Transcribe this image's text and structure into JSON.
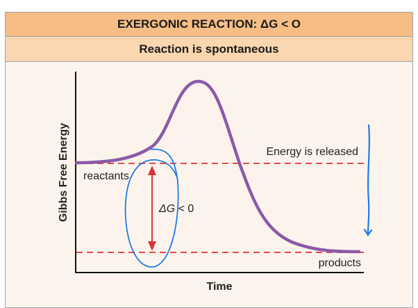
{
  "header": {
    "title": "EXERGONIC REACTION: ΔG < O",
    "subtitle": "Reaction is spontaneous"
  },
  "diagram": {
    "y_axis_label": "Gibbs Free Energy",
    "x_axis_label": "Time",
    "reactants_label": "reactants",
    "products_label": "products",
    "energy_label": "Energy is released",
    "delta_g_symbol": "ΔG",
    "delta_g_rest": " < 0",
    "colors": {
      "curve": "#8a5aa8",
      "dashed_lines": "#e0494c",
      "arrow": "#d9363a",
      "annotation": "#1e7be8",
      "header": "#f6bd85",
      "subheader": "#fad7b0",
      "background": "#fcf4ec"
    }
  }
}
